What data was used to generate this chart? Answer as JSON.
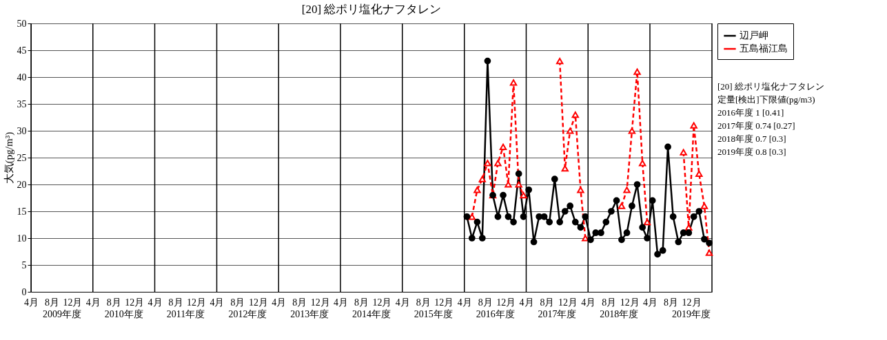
{
  "chart_data": {
    "type": "line",
    "title": "[20] 総ポリ塩化ナフタレン",
    "ylabel": "大気(pg/m³)",
    "x": [
      "2016-04-16",
      "2016-05-16",
      "2016-06-16",
      "2016-07-16",
      "2016-08-16",
      "2016-09-16",
      "2016-10-16",
      "2016-11-16",
      "2016-12-16",
      "2017-01-16",
      "2017-02-16",
      "2017-03-16",
      "2017-04-16",
      "2017-05-16",
      "2017-06-16",
      "2017-07-16",
      "2017-08-16",
      "2017-09-16",
      "2017-10-16",
      "2017-11-16",
      "2017-12-16",
      "2018-01-16",
      "2018-02-16",
      "2018-03-16",
      "2018-04-16",
      "2018-05-16",
      "2018-06-16",
      "2018-07-16",
      "2018-08-16",
      "2018-09-16",
      "2018-10-16",
      "2018-11-16",
      "2018-12-16",
      "2019-01-16",
      "2019-02-16",
      "2019-03-16",
      "2019-04-16",
      "2019-05-16",
      "2019-06-16",
      "2019-07-16",
      "2019-08-16",
      "2019-09-16",
      "2019-10-16",
      "2019-11-16",
      "2019-12-16",
      "2020-01-16",
      "2020-02-16",
      "2020-03-16"
    ],
    "series": [
      {
        "name": "辺戸岬",
        "color": "#000000",
        "marker": "circle",
        "line_style": "solid",
        "values": [
          14,
          10,
          13,
          10,
          43,
          18,
          14,
          18,
          14,
          13,
          22,
          14,
          19,
          9.3,
          14,
          14,
          13,
          21,
          13,
          15,
          16,
          13,
          12,
          14,
          9.7,
          11,
          11,
          13,
          15,
          17,
          9.7,
          11,
          16,
          20,
          12,
          10,
          17,
          7,
          7.7,
          27,
          14,
          9.3,
          11,
          11,
          14,
          15,
          9.8,
          9.1
        ]
      },
      {
        "name": "五島福江島",
        "color": "#ff0000",
        "marker": "triangle",
        "line_style": "dashed",
        "values": [
          null,
          14,
          19,
          21,
          24,
          18,
          24,
          27,
          20,
          39,
          20,
          18,
          null,
          null,
          null,
          null,
          null,
          null,
          43,
          23,
          30,
          33,
          19,
          10,
          null,
          null,
          null,
          null,
          null,
          null,
          16,
          19,
          30,
          41,
          24,
          13,
          null,
          null,
          null,
          null,
          null,
          null,
          26,
          12,
          31,
          22,
          16,
          7.3
        ]
      }
    ],
    "xlim": [
      "2009-04-01",
      "2020-04-01"
    ],
    "x2lim": [
      "2009-04-01",
      "2020-04-01"
    ],
    "xticks": [
      {
        "value": "2009-04-01",
        "label": "4月"
      },
      {
        "value": "2009-08-01",
        "label": "8月"
      },
      {
        "value": "2009-12-01",
        "label": "12月"
      },
      {
        "value": "2010-04-01",
        "label": "4月"
      },
      {
        "value": "2010-08-01",
        "label": "8月"
      },
      {
        "value": "2010-12-01",
        "label": "12月"
      },
      {
        "value": "2011-04-01",
        "label": "4月"
      },
      {
        "value": "2011-08-01",
        "label": "8月"
      },
      {
        "value": "2011-12-01",
        "label": "12月"
      },
      {
        "value": "2012-04-01",
        "label": "4月"
      },
      {
        "value": "2012-08-01",
        "label": "8月"
      },
      {
        "value": "2012-12-01",
        "label": "12月"
      },
      {
        "value": "2013-04-01",
        "label": "4月"
      },
      {
        "value": "2013-08-01",
        "label": "8月"
      },
      {
        "value": "2013-12-01",
        "label": "12月"
      },
      {
        "value": "2014-04-01",
        "label": "4月"
      },
      {
        "value": "2014-08-01",
        "label": "8月"
      },
      {
        "value": "2014-12-01",
        "label": "12月"
      },
      {
        "value": "2015-04-01",
        "label": "4月"
      },
      {
        "value": "2015-08-01",
        "label": "8月"
      },
      {
        "value": "2015-12-01",
        "label": "12月"
      },
      {
        "value": "2016-04-01",
        "label": "4月"
      },
      {
        "value": "2016-08-01",
        "label": "8月"
      },
      {
        "value": "2016-12-01",
        "label": "12月"
      },
      {
        "value": "2017-04-01",
        "label": "4月"
      },
      {
        "value": "2017-08-01",
        "label": "8月"
      },
      {
        "value": "2017-12-01",
        "label": "12月"
      },
      {
        "value": "2018-04-01",
        "label": "4月"
      },
      {
        "value": "2018-08-01",
        "label": "8月"
      },
      {
        "value": "2018-12-01",
        "label": "12月"
      },
      {
        "value": "2019-04-01",
        "label": "4月"
      },
      {
        "value": "2019-08-01",
        "label": "8月"
      },
      {
        "value": "2019-12-01",
        "label": "12月"
      }
    ],
    "x2ticks": [
      {
        "value": "2009-10-01",
        "label": "2009年度"
      },
      {
        "value": "2010-10-01",
        "label": "2010年度"
      },
      {
        "value": "2011-10-01",
        "label": "2011年度"
      },
      {
        "value": "2012-10-01",
        "label": "2012年度"
      },
      {
        "value": "2013-10-01",
        "label": "2013年度"
      },
      {
        "value": "2014-10-01",
        "label": "2014年度"
      },
      {
        "value": "2015-10-01",
        "label": "2015年度"
      },
      {
        "value": "2016-10-01",
        "label": "2016年度"
      },
      {
        "value": "2017-10-01",
        "label": "2017年度"
      },
      {
        "value": "2018-10-01",
        "label": "2018年度"
      },
      {
        "value": "2019-12-01",
        "label": "2019年度"
      }
    ],
    "ylim": [
      0,
      50
    ],
    "yticks": [
      0,
      5,
      10,
      15,
      20,
      25,
      30,
      35,
      40,
      45,
      50
    ],
    "grid": true,
    "legend": "top right",
    "annotations": [
      "[20] 総ポリ塩化ナフタレン",
      "定量[検出]下限値(pg/m3)",
      "2016年度 1 [0.41]",
      "2017年度 0.74 [0.27]",
      "2018年度 0.7 [0.3]",
      "2019年度 0.8 [0.3]"
    ]
  }
}
